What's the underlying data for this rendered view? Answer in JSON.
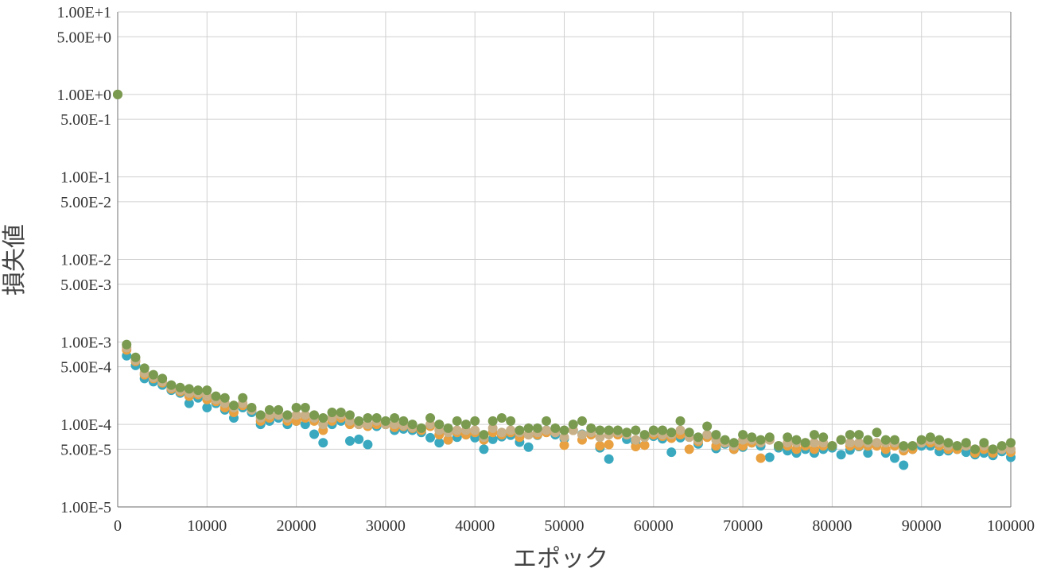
{
  "chart_data": {
    "type": "scatter",
    "xlabel": "エポック",
    "ylabel": "損失値",
    "xlim": [
      0,
      100000
    ],
    "ylim": [
      1e-05,
      10
    ],
    "y_scale": "log",
    "grid": true,
    "legend": "none",
    "x_ticks": [
      "0",
      "10000",
      "20000",
      "30000",
      "40000",
      "50000",
      "60000",
      "70000",
      "80000",
      "90000",
      "100000"
    ],
    "y_ticks": [
      {
        "label": "1.00E+1",
        "value": 10
      },
      {
        "label": "5.00E+0",
        "value": 5
      },
      {
        "label": "1.00E+0",
        "value": 1
      },
      {
        "label": "5.00E-1",
        "value": 0.5
      },
      {
        "label": "1.00E-1",
        "value": 0.1
      },
      {
        "label": "5.00E-2",
        "value": 0.05
      },
      {
        "label": "1.00E-2",
        "value": 0.01
      },
      {
        "label": "5.00E-3",
        "value": 0.005
      },
      {
        "label": "1.00E-3",
        "value": 0.001
      },
      {
        "label": "5.00E-4",
        "value": 0.0005
      },
      {
        "label": "1.00E-4",
        "value": 0.0001
      },
      {
        "label": "5.00E-5",
        "value": 5e-05
      },
      {
        "label": "1.00E-5",
        "value": 1e-05
      }
    ],
    "series": [
      {
        "color": "#3aa9c0",
        "x": [
          0,
          1000,
          2000,
          3000,
          4000,
          5000,
          6000,
          7000,
          8000,
          9000,
          10000,
          11000,
          12000,
          13000,
          14000,
          15000,
          16000,
          17000,
          18000,
          19000,
          20000,
          21000,
          22000,
          23000,
          24000,
          25000,
          26000,
          27000,
          28000,
          29000,
          30000,
          31000,
          32000,
          33000,
          34000,
          35000,
          36000,
          37000,
          38000,
          39000,
          40000,
          41000,
          42000,
          43000,
          44000,
          45000,
          46000,
          47000,
          48000,
          49000,
          50000,
          51000,
          52000,
          53000,
          54000,
          55000,
          56000,
          57000,
          58000,
          59000,
          60000,
          61000,
          62000,
          63000,
          64000,
          65000,
          66000,
          67000,
          68000,
          69000,
          70000,
          71000,
          72000,
          73000,
          74000,
          75000,
          76000,
          77000,
          78000,
          79000,
          80000,
          81000,
          82000,
          83000,
          84000,
          85000,
          86000,
          87000,
          88000,
          89000,
          90000,
          91000,
          92000,
          93000,
          94000,
          95000,
          96000,
          97000,
          98000,
          99000,
          100000
        ],
        "y": [
          1.0,
          0.00068,
          0.00052,
          0.00036,
          0.00033,
          0.0003,
          0.00026,
          0.00024,
          0.00018,
          0.00021,
          0.00016,
          0.00018,
          0.00015,
          0.00012,
          0.00016,
          0.00014,
          0.0001,
          0.00011,
          0.00012,
          0.0001,
          0.00011,
          0.0001,
          7.6e-05,
          6e-05,
          0.0001,
          0.00011,
          6.3e-05,
          6.6e-05,
          5.7e-05,
          9.5e-05,
          0.0001,
          8.5e-05,
          8.8e-05,
          8.5e-05,
          8e-05,
          6.9e-05,
          6e-05,
          6.5e-05,
          7e-05,
          7.5e-05,
          6.9e-05,
          5e-05,
          6.6e-05,
          7.1e-05,
          7.4e-05,
          6.1e-05,
          5.3e-05,
          7.4e-05,
          8.5e-05,
          7.5e-05,
          6.7e-05,
          8.5e-05,
          7.6e-05,
          8e-05,
          5.2e-05,
          3.8e-05,
          8e-05,
          6.6e-05,
          6.1e-05,
          7e-05,
          7.2e-05,
          6.7e-05,
          4.6e-05,
          6.9e-05,
          7.2e-05,
          5.8e-05,
          7.5e-05,
          5.1e-05,
          5.8e-05,
          5e-05,
          5.3e-05,
          6e-05,
          5.5e-05,
          4e-05,
          5.2e-05,
          4.8e-05,
          4.5e-05,
          5e-05,
          4.5e-05,
          5e-05,
          5.2e-05,
          4.3e-05,
          4.9e-05,
          5.4e-05,
          4.5e-05,
          5.6e-05,
          4.5e-05,
          3.9e-05,
          3.2e-05,
          5e-05,
          5.5e-05,
          5.5e-05,
          4.7e-05,
          4.8e-05,
          5e-05,
          4.6e-05,
          4.3e-05,
          4.5e-05,
          4.2e-05,
          4.7e-05,
          4e-05
        ]
      },
      {
        "color": "#e8a040",
        "x": [
          0,
          1000,
          2000,
          3000,
          4000,
          5000,
          6000,
          7000,
          8000,
          9000,
          10000,
          11000,
          12000,
          13000,
          14000,
          15000,
          16000,
          17000,
          18000,
          19000,
          20000,
          21000,
          22000,
          23000,
          24000,
          25000,
          26000,
          27000,
          28000,
          29000,
          30000,
          31000,
          32000,
          33000,
          34000,
          35000,
          36000,
          37000,
          38000,
          39000,
          40000,
          41000,
          42000,
          43000,
          44000,
          45000,
          46000,
          47000,
          48000,
          49000,
          50000,
          51000,
          52000,
          53000,
          54000,
          55000,
          56000,
          57000,
          58000,
          59000,
          60000,
          61000,
          62000,
          63000,
          64000,
          65000,
          66000,
          67000,
          68000,
          69000,
          70000,
          71000,
          72000,
          73000,
          74000,
          75000,
          76000,
          77000,
          78000,
          79000,
          80000,
          81000,
          82000,
          83000,
          84000,
          85000,
          86000,
          87000,
          88000,
          89000,
          90000,
          91000,
          92000,
          93000,
          94000,
          95000,
          96000,
          97000,
          98000,
          99000,
          100000
        ],
        "y": [
          1.0,
          0.0008,
          0.00058,
          0.0004,
          0.00036,
          0.00032,
          0.00027,
          0.00025,
          0.00022,
          0.00023,
          0.0002,
          0.00019,
          0.00016,
          0.00014,
          0.00017,
          0.00015,
          0.00011,
          0.00012,
          0.00013,
          0.00011,
          0.00011,
          0.00012,
          0.00011,
          8.5e-05,
          0.00011,
          0.00012,
          0.0001,
          0.0001,
          9.5e-05,
          0.0001,
          0.0001,
          9.2e-05,
          9.5e-05,
          9e-05,
          8.5e-05,
          9.5e-05,
          7.5e-05,
          6.5e-05,
          8e-05,
          7.5e-05,
          8e-05,
          6.5e-05,
          8e-05,
          7.5e-05,
          8e-05,
          7e-05,
          7.5e-05,
          7.5e-05,
          8e-05,
          8e-05,
          5.6e-05,
          8.5e-05,
          6.5e-05,
          7.5e-05,
          5.5e-05,
          5.7e-05,
          7.5e-05,
          7.5e-05,
          5.4e-05,
          5.6e-05,
          7.5e-05,
          7.2e-05,
          6.8e-05,
          7.5e-05,
          5e-05,
          6.2e-05,
          7e-05,
          5.5e-05,
          6e-05,
          5e-05,
          5.5e-05,
          6e-05,
          3.9e-05,
          6.5e-05,
          5.5e-05,
          5.5e-05,
          5e-05,
          5.5e-05,
          5e-05,
          5.5e-05,
          5.5e-05,
          6.5e-05,
          5.5e-05,
          5.5e-05,
          5.5e-05,
          5.5e-05,
          5e-05,
          5.5e-05,
          4.8e-05,
          5e-05,
          6e-05,
          6e-05,
          5.5e-05,
          5e-05,
          5e-05,
          5.5e-05,
          4.5e-05,
          5e-05,
          4.5e-05,
          5e-05,
          4.6e-05
        ]
      },
      {
        "color": "#c8b088",
        "x": [
          0,
          1000,
          2000,
          3000,
          4000,
          5000,
          6000,
          7000,
          8000,
          9000,
          10000,
          11000,
          12000,
          13000,
          14000,
          15000,
          16000,
          17000,
          18000,
          19000,
          20000,
          21000,
          22000,
          23000,
          24000,
          25000,
          26000,
          27000,
          28000,
          29000,
          30000,
          31000,
          32000,
          33000,
          34000,
          35000,
          36000,
          37000,
          38000,
          39000,
          40000,
          41000,
          42000,
          43000,
          44000,
          45000,
          46000,
          47000,
          48000,
          49000,
          50000,
          51000,
          52000,
          53000,
          54000,
          55000,
          56000,
          57000,
          58000,
          59000,
          60000,
          61000,
          62000,
          63000,
          64000,
          65000,
          66000,
          67000,
          68000,
          69000,
          70000,
          71000,
          72000,
          73000,
          74000,
          75000,
          76000,
          77000,
          78000,
          79000,
          80000,
          81000,
          82000,
          83000,
          84000,
          85000,
          86000,
          87000,
          88000,
          89000,
          90000,
          91000,
          92000,
          93000,
          94000,
          95000,
          96000,
          97000,
          98000,
          99000,
          100000
        ],
        "y": [
          1.0,
          0.00085,
          0.0006,
          0.00042,
          0.00037,
          0.00033,
          0.00028,
          0.00026,
          0.00024,
          0.00024,
          0.00022,
          0.0002,
          0.00018,
          0.00016,
          0.00018,
          0.00015,
          0.00012,
          0.00013,
          0.00013,
          0.00012,
          0.00013,
          0.00013,
          0.00012,
          0.0001,
          0.00012,
          0.00013,
          0.00011,
          0.0001,
          0.0001,
          0.00011,
          0.0001,
          0.0001,
          9.7e-05,
          9.2e-05,
          9e-05,
          0.0001,
          8.5e-05,
          8e-05,
          8.5e-05,
          8.5e-05,
          8.5e-05,
          7e-05,
          9e-05,
          8e-05,
          8.5e-05,
          8e-05,
          7.5e-05,
          8e-05,
          8.5e-05,
          8e-05,
          7e-05,
          8.5e-05,
          7.5e-05,
          8e-05,
          7e-05,
          7.5e-05,
          8e-05,
          7.5e-05,
          6.5e-05,
          7e-05,
          8e-05,
          7.5e-05,
          7.5e-05,
          8.5e-05,
          7e-05,
          6.5e-05,
          7.5e-05,
          6.5e-05,
          6e-05,
          5.5e-05,
          6.5e-05,
          6.5e-05,
          6e-05,
          6.5e-05,
          5.5e-05,
          6e-05,
          6e-05,
          6e-05,
          6e-05,
          6e-05,
          5.5e-05,
          6.5e-05,
          6e-05,
          6e-05,
          6e-05,
          6e-05,
          6e-05,
          6e-05,
          5.2e-05,
          5.5e-05,
          6e-05,
          6.5e-05,
          6e-05,
          5.5e-05,
          5.5e-05,
          5.5e-05,
          5e-05,
          5.5e-05,
          5e-05,
          5e-05,
          5e-05
        ]
      },
      {
        "color": "#7a9a50",
        "x": [
          0,
          1000,
          2000,
          3000,
          4000,
          5000,
          6000,
          7000,
          8000,
          9000,
          10000,
          11000,
          12000,
          13000,
          14000,
          15000,
          16000,
          17000,
          18000,
          19000,
          20000,
          21000,
          22000,
          23000,
          24000,
          25000,
          26000,
          27000,
          28000,
          29000,
          30000,
          31000,
          32000,
          33000,
          34000,
          35000,
          36000,
          37000,
          38000,
          39000,
          40000,
          41000,
          42000,
          43000,
          44000,
          45000,
          46000,
          47000,
          48000,
          49000,
          50000,
          51000,
          52000,
          53000,
          54000,
          55000,
          56000,
          57000,
          58000,
          59000,
          60000,
          61000,
          62000,
          63000,
          64000,
          65000,
          66000,
          67000,
          68000,
          69000,
          70000,
          71000,
          72000,
          73000,
          74000,
          75000,
          76000,
          77000,
          78000,
          79000,
          80000,
          81000,
          82000,
          83000,
          84000,
          85000,
          86000,
          87000,
          88000,
          89000,
          90000,
          91000,
          92000,
          93000,
          94000,
          95000,
          96000,
          97000,
          98000,
          99000,
          100000
        ],
        "y": [
          1.0,
          0.00093,
          0.00065,
          0.00048,
          0.0004,
          0.00036,
          0.0003,
          0.00028,
          0.00027,
          0.00026,
          0.00026,
          0.00022,
          0.00021,
          0.00017,
          0.00021,
          0.00016,
          0.00013,
          0.00015,
          0.00015,
          0.00013,
          0.00016,
          0.00016,
          0.00013,
          0.00012,
          0.00014,
          0.00014,
          0.00013,
          0.00011,
          0.00012,
          0.00012,
          0.00011,
          0.00012,
          0.00011,
          0.0001,
          9e-05,
          0.00012,
          0.0001,
          9e-05,
          0.00011,
          0.0001,
          0.00011,
          7.5e-05,
          0.00011,
          0.00012,
          0.00011,
          8.5e-05,
          9e-05,
          9e-05,
          0.00011,
          9e-05,
          8.5e-05,
          0.0001,
          0.00011,
          9e-05,
          8.5e-05,
          8.5e-05,
          8.5e-05,
          8e-05,
          8.5e-05,
          7.5e-05,
          8.5e-05,
          8.5e-05,
          8e-05,
          0.00011,
          8e-05,
          7e-05,
          9.5e-05,
          7.5e-05,
          6.5e-05,
          6e-05,
          7.5e-05,
          7e-05,
          6.5e-05,
          7e-05,
          5.5e-05,
          7e-05,
          6.5e-05,
          6e-05,
          7.5e-05,
          7e-05,
          5.5e-05,
          6.5e-05,
          7.5e-05,
          7.5e-05,
          6.5e-05,
          8e-05,
          6.5e-05,
          6.5e-05,
          5.5e-05,
          5.5e-05,
          6.5e-05,
          7e-05,
          6.5e-05,
          6e-05,
          5.5e-05,
          6e-05,
          5e-05,
          6e-05,
          5e-05,
          5.5e-05,
          6e-05
        ]
      }
    ]
  }
}
